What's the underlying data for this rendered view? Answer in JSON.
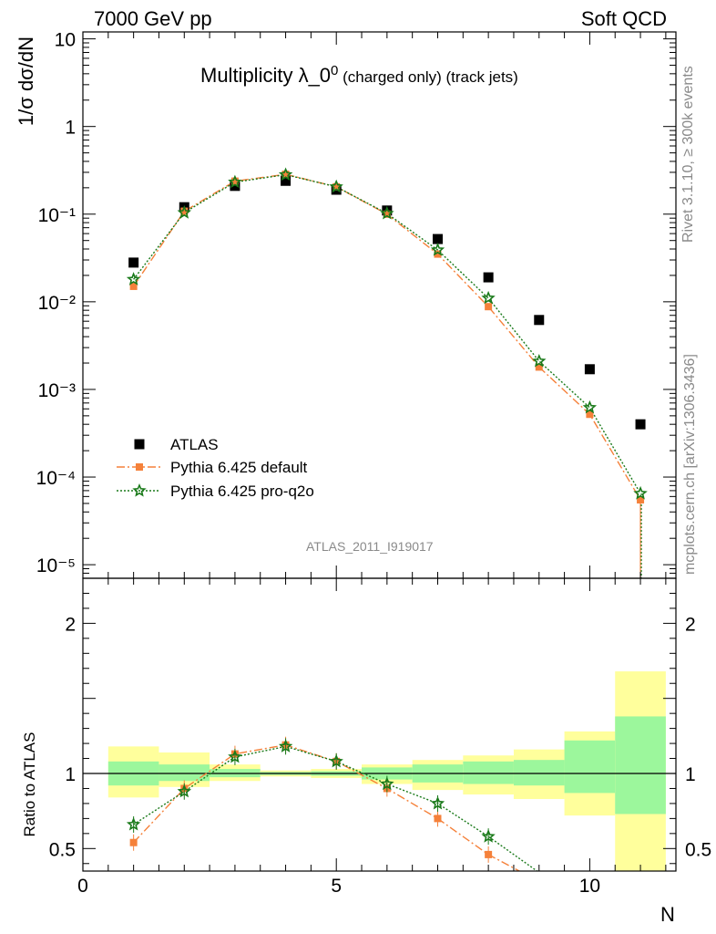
{
  "header": {
    "left_title": "7000 GeV pp",
    "right_title": "Soft QCD"
  },
  "side": {
    "rivet": "Rivet 3.1.10, ≥ 300k events",
    "mcplots": "mcplots.cern.ch [arXiv:1306.3436]"
  },
  "analysis_id": "ATLAS_2011_I919017",
  "chart_data": [
    {
      "type": "scatter",
      "panel": "main",
      "title": "Multiplicity λ_0",
      "title_sup": "0",
      "title_suffix": "(charged only) (track jets)",
      "ylabel": "1/σ dσ/dN",
      "yscale": "log",
      "ylim": [
        7e-06,
        12
      ],
      "xlim": [
        0,
        11.7
      ],
      "ytick_labels": [
        "10",
        "1",
        "10⁻¹",
        "10⁻²",
        "10⁻³",
        "10⁻⁴",
        "10⁻⁵"
      ],
      "legend_position": "lower-left",
      "series": [
        {
          "name": "ATLAS",
          "color": "#000000",
          "marker": "square",
          "x": [
            1,
            2,
            3,
            4,
            5,
            6,
            7,
            8,
            9,
            10,
            11
          ],
          "y": [
            0.028,
            0.12,
            0.21,
            0.24,
            0.19,
            0.11,
            0.052,
            0.019,
            0.0062,
            0.0017,
            0.0004
          ]
        },
        {
          "name": "Pythia 6.425 default",
          "color": "#f5813a",
          "marker": "square",
          "line": "dash-dot",
          "x": [
            1,
            2,
            3,
            4,
            5,
            6,
            7,
            8,
            9,
            10,
            11
          ],
          "y": [
            0.015,
            0.108,
            0.238,
            0.285,
            0.205,
            0.1,
            0.035,
            0.0088,
            0.0018,
            0.00052,
            5.5e-05
          ]
        },
        {
          "name": "Pythia 6.425 pro-q2o",
          "color": "#1a7a1a",
          "marker": "star",
          "line": "dotted",
          "x": [
            1,
            2,
            3,
            4,
            5,
            6,
            7,
            8,
            9,
            10,
            11
          ],
          "y": [
            0.018,
            0.104,
            0.232,
            0.282,
            0.205,
            0.102,
            0.039,
            0.011,
            0.0021,
            0.00062,
            6.5e-05
          ]
        }
      ]
    },
    {
      "type": "scatter",
      "panel": "ratio",
      "ylabel": "Ratio to ATLAS",
      "xlabel": "N",
      "ylim": [
        0.35,
        2.3
      ],
      "xlim": [
        0,
        11.7
      ],
      "yticks": [
        0.5,
        1,
        2
      ],
      "ytick_labels": [
        "0.5",
        "1",
        "2"
      ],
      "xticks": [
        0,
        5,
        10
      ],
      "xtick_labels": [
        "0",
        "5",
        "10"
      ],
      "uncertainty_bands": {
        "bins": [
          [
            0.5,
            1.5
          ],
          [
            1.5,
            2.5
          ],
          [
            2.5,
            3.5
          ],
          [
            3.5,
            4.5
          ],
          [
            4.5,
            5.5
          ],
          [
            5.5,
            6.5
          ],
          [
            6.5,
            7.5
          ],
          [
            7.5,
            8.5
          ],
          [
            8.5,
            9.5
          ],
          [
            9.5,
            10.5
          ],
          [
            10.5,
            11.5
          ]
        ],
        "inner_color": "#9cf79c",
        "outer_color": "#ffff9c",
        "inner_lo": [
          0.92,
          0.95,
          0.975,
          0.99,
          0.985,
          0.96,
          0.94,
          0.93,
          0.92,
          0.87,
          0.73
        ],
        "inner_hi": [
          1.08,
          1.06,
          1.03,
          1.01,
          1.015,
          1.04,
          1.06,
          1.08,
          1.09,
          1.22,
          1.38
        ],
        "outer_lo": [
          0.84,
          0.91,
          0.95,
          0.98,
          0.97,
          0.93,
          0.89,
          0.86,
          0.83,
          0.72,
          0.3
        ],
        "outer_hi": [
          1.18,
          1.14,
          1.06,
          1.02,
          1.03,
          1.06,
          1.09,
          1.12,
          1.16,
          1.28,
          1.68
        ]
      },
      "series": [
        {
          "name": "Pythia 6.425 default",
          "color": "#f5813a",
          "x": [
            1,
            2,
            3,
            4,
            5,
            6,
            7,
            8,
            9
          ],
          "y": [
            0.54,
            0.9,
            1.13,
            1.19,
            1.08,
            0.9,
            0.7,
            0.46,
            0.28
          ]
        },
        {
          "name": "Pythia 6.425 pro-q2o",
          "color": "#1a7a1a",
          "x": [
            1,
            2,
            3,
            4,
            5,
            6,
            7,
            8,
            9
          ],
          "y": [
            0.66,
            0.88,
            1.11,
            1.18,
            1.08,
            0.93,
            0.8,
            0.58,
            0.34
          ]
        }
      ]
    }
  ]
}
